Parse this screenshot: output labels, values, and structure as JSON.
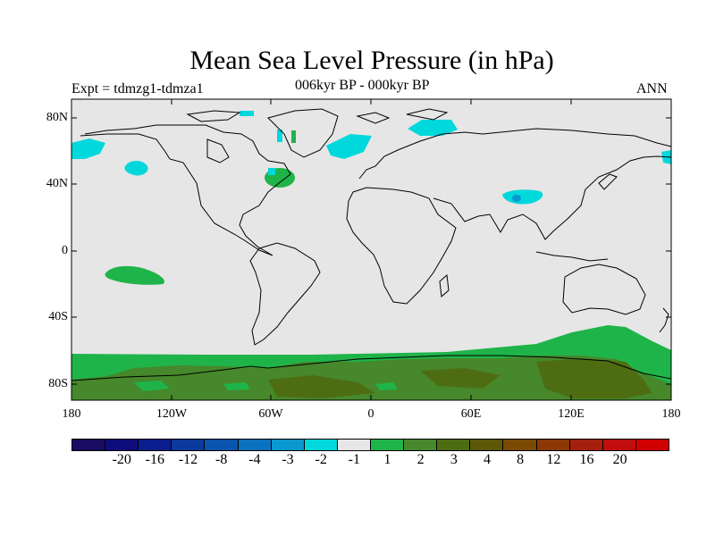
{
  "title": "Mean Sea Level Pressure (in hPa)",
  "experiment_label": "Expt = tdmzg1-tdmza1",
  "period_label": "006kyr BP - 000kyr BP",
  "season_label": "ANN",
  "lat_ticks": [
    "80N",
    "40N",
    "0",
    "40S",
    "80S"
  ],
  "lon_ticks": [
    "180",
    "120W",
    "60W",
    "0",
    "60E",
    "120E",
    "180"
  ],
  "colorbar": {
    "colors": [
      "#1a0b63",
      "#0e0c7a",
      "#0b1e8f",
      "#0a3a9e",
      "#0a55ad",
      "#0a72bf",
      "#0a98cf",
      "#00d8dc",
      "#e6e6e6",
      "#1fb449",
      "#46882b",
      "#4e6d12",
      "#5d5708",
      "#7a4a02",
      "#8b3804",
      "#a5200c",
      "#c10d0d",
      "#d00000"
    ],
    "labels": [
      "-20",
      "-16",
      "-12",
      "-8",
      "-4",
      "-3",
      "-2",
      "-1",
      "1",
      "2",
      "3",
      "4",
      "8",
      "12",
      "16",
      "20"
    ]
  },
  "map_colors": {
    "background": "#e6e6e6",
    "cyan": "#00d8dc",
    "light_green": "#1fb449",
    "dark_green": "#46882b",
    "olive": "#4e6d12",
    "teal": "#0a98cf",
    "coast": "#000000"
  }
}
